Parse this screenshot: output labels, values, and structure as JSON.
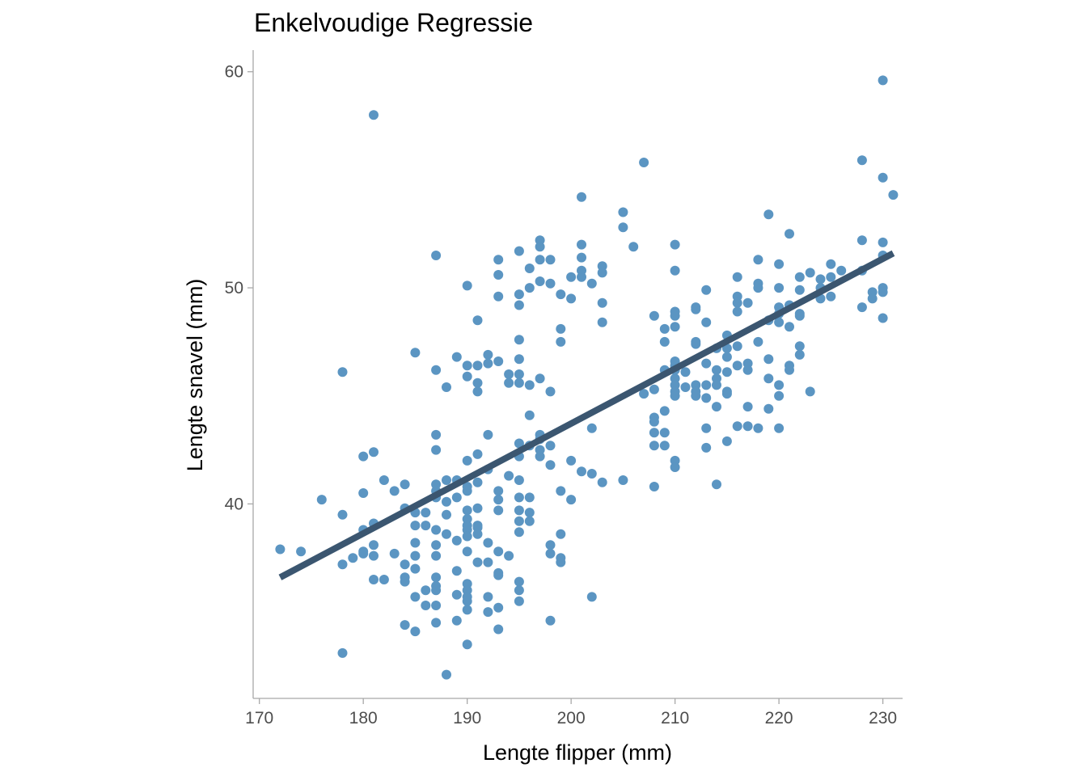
{
  "chart_data": {
    "type": "scatter",
    "title": "Enkelvoudige Regressie",
    "xlabel": "Lengte flipper (mm)",
    "ylabel": "Lengte snavel (mm)",
    "xlim": [
      169.4,
      231.9
    ],
    "ylim": [
      31,
      61
    ],
    "xticks": [
      170,
      180,
      190,
      200,
      210,
      220,
      230
    ],
    "yticks": [
      40,
      50,
      60
    ],
    "grid": false,
    "legend": "none",
    "point_color": "#5b95c2",
    "line_color": "#3b5670",
    "regression_line": {
      "x": [
        172,
        231
      ],
      "y": [
        36.6,
        51.6
      ]
    },
    "points": [
      [
        181,
        58.0
      ],
      [
        230,
        59.6
      ],
      [
        207,
        55.8
      ],
      [
        228,
        55.9
      ],
      [
        230,
        55.1
      ],
      [
        231,
        54.3
      ],
      [
        201,
        54.2
      ],
      [
        205,
        53.5
      ],
      [
        219,
        53.4
      ],
      [
        205,
        52.8
      ],
      [
        221,
        52.5
      ],
      [
        228,
        52.2
      ],
      [
        197,
        52.2
      ],
      [
        230,
        52.1
      ],
      [
        201,
        52.0
      ],
      [
        210,
        52.0
      ],
      [
        197,
        51.9
      ],
      [
        206,
        51.9
      ],
      [
        195,
        51.7
      ],
      [
        187,
        51.5
      ],
      [
        201,
        51.4
      ],
      [
        230,
        51.5
      ],
      [
        197,
        51.3
      ],
      [
        193,
        51.3
      ],
      [
        218,
        51.3
      ],
      [
        198,
        51.3
      ],
      [
        220,
        51.1
      ],
      [
        225,
        51.1
      ],
      [
        196,
        50.9
      ],
      [
        203,
        51.0
      ],
      [
        210,
        50.8
      ],
      [
        201,
        50.8
      ],
      [
        203,
        50.7
      ],
      [
        224,
        50.4
      ],
      [
        226,
        50.8
      ],
      [
        228,
        50.8
      ],
      [
        193,
        50.6
      ],
      [
        222,
        50.5
      ],
      [
        216,
        50.5
      ],
      [
        201,
        50.5
      ],
      [
        223,
        50.7
      ],
      [
        225,
        50.5
      ],
      [
        200,
        50.5
      ],
      [
        202,
        50.2
      ],
      [
        197,
        50.3
      ],
      [
        198,
        50.2
      ],
      [
        218,
        50.2
      ],
      [
        190,
        50.1
      ],
      [
        196,
        50.0
      ],
      [
        220,
        50.0
      ],
      [
        224,
        50.0
      ],
      [
        230,
        50.0
      ],
      [
        213,
        49.9
      ],
      [
        218,
        50.0
      ],
      [
        229,
        49.8
      ],
      [
        195,
        49.7
      ],
      [
        199,
        49.7
      ],
      [
        222,
        49.9
      ],
      [
        230,
        49.8
      ],
      [
        216,
        49.6
      ],
      [
        193,
        49.6
      ],
      [
        225,
        49.6
      ],
      [
        200,
        49.5
      ],
      [
        224,
        49.5
      ],
      [
        229,
        49.5
      ],
      [
        216,
        49.3
      ],
      [
        217,
        49.3
      ],
      [
        203,
        49.3
      ],
      [
        195,
        49.2
      ],
      [
        212,
        49.1
      ],
      [
        221,
        49.2
      ],
      [
        220,
        49.1
      ],
      [
        228,
        49.1
      ],
      [
        210,
        48.9
      ],
      [
        212,
        49.0
      ],
      [
        216,
        48.9
      ],
      [
        220,
        48.8
      ],
      [
        222,
        48.8
      ],
      [
        222,
        48.7
      ],
      [
        208,
        48.7
      ],
      [
        210,
        48.7
      ],
      [
        230,
        48.6
      ],
      [
        219,
        48.5
      ],
      [
        220,
        48.4
      ],
      [
        191,
        48.5
      ],
      [
        203,
        48.4
      ],
      [
        213,
        48.4
      ],
      [
        221,
        48.2
      ],
      [
        209,
        48.1
      ],
      [
        199,
        48.1
      ],
      [
        210,
        48.2
      ],
      [
        195,
        47.6
      ],
      [
        199,
        47.5
      ],
      [
        209,
        47.5
      ],
      [
        215,
        47.8
      ],
      [
        212,
        47.5
      ],
      [
        218,
        47.5
      ],
      [
        216,
        47.3
      ],
      [
        222,
        47.3
      ],
      [
        212,
        47.4
      ],
      [
        215,
        47.2
      ],
      [
        214,
        47.2
      ],
      [
        185,
        47.0
      ],
      [
        192,
        46.9
      ],
      [
        222,
        46.9
      ],
      [
        189,
        46.8
      ],
      [
        195,
        46.7
      ],
      [
        219,
        46.7
      ],
      [
        215,
        46.8
      ],
      [
        193,
        46.6
      ],
      [
        210,
        46.6
      ],
      [
        190,
        46.4
      ],
      [
        191,
        46.4
      ],
      [
        192,
        46.5
      ],
      [
        213,
        46.5
      ],
      [
        216,
        46.4
      ],
      [
        217,
        46.5
      ],
      [
        221,
        46.4
      ],
      [
        210,
        46.4
      ],
      [
        221,
        46.2
      ],
      [
        187,
        46.2
      ],
      [
        178,
        46.1
      ],
      [
        194,
        46.0
      ],
      [
        195,
        46.0
      ],
      [
        209,
        46.2
      ],
      [
        210,
        46.2
      ],
      [
        211,
        46.1
      ],
      [
        214,
        46.2
      ],
      [
        215,
        46.1
      ],
      [
        217,
        46.2
      ],
      [
        190,
        45.9
      ],
      [
        197,
        45.8
      ],
      [
        210,
        45.8
      ],
      [
        214,
        45.8
      ],
      [
        219,
        45.8
      ],
      [
        191,
        45.6
      ],
      [
        194,
        45.6
      ],
      [
        195,
        45.6
      ],
      [
        196,
        45.5
      ],
      [
        210,
        45.5
      ],
      [
        212,
        45.5
      ],
      [
        214,
        45.5
      ],
      [
        220,
        45.5
      ],
      [
        188,
        45.4
      ],
      [
        208,
        45.3
      ],
      [
        211,
        45.4
      ],
      [
        213,
        45.5
      ],
      [
        210,
        45.2
      ],
      [
        212,
        45.2
      ],
      [
        215,
        45.2
      ],
      [
        191,
        45.2
      ],
      [
        198,
        45.2
      ],
      [
        207,
        45.1
      ],
      [
        215,
        45.1
      ],
      [
        223,
        45.2
      ],
      [
        210,
        45.0
      ],
      [
        212,
        45.0
      ],
      [
        220,
        45.0
      ],
      [
        213,
        44.9
      ],
      [
        214,
        44.5
      ],
      [
        217,
        44.5
      ],
      [
        219,
        44.4
      ],
      [
        209,
        44.3
      ],
      [
        196,
        44.1
      ],
      [
        208,
        44.0
      ],
      [
        208,
        43.8
      ],
      [
        216,
        43.6
      ],
      [
        217,
        43.6
      ],
      [
        218,
        43.5
      ],
      [
        220,
        43.5
      ],
      [
        202,
        43.5
      ],
      [
        213,
        43.5
      ],
      [
        208,
        43.3
      ],
      [
        209,
        43.3
      ],
      [
        197,
        43.2
      ],
      [
        187,
        43.2
      ],
      [
        192,
        43.2
      ],
      [
        197,
        43.0
      ],
      [
        215,
        42.9
      ],
      [
        195,
        42.8
      ],
      [
        196,
        42.7
      ],
      [
        198,
        42.7
      ],
      [
        208,
        42.7
      ],
      [
        209,
        42.7
      ],
      [
        213,
        42.6
      ],
      [
        187,
        42.5
      ],
      [
        197,
        42.5
      ],
      [
        181,
        42.4
      ],
      [
        195,
        42.2
      ],
      [
        180,
        42.2
      ],
      [
        191,
        42.3
      ],
      [
        197,
        42.2
      ],
      [
        200,
        42.0
      ],
      [
        210,
        42.0
      ],
      [
        190,
        42.0
      ],
      [
        198,
        41.8
      ],
      [
        210,
        41.7
      ],
      [
        192,
        41.6
      ],
      [
        201,
        41.5
      ],
      [
        202,
        41.4
      ],
      [
        194,
        41.3
      ],
      [
        195,
        41.1
      ],
      [
        182,
        41.1
      ],
      [
        188,
        41.1
      ],
      [
        189,
        41.1
      ],
      [
        205,
        41.1
      ],
      [
        214,
        40.9
      ],
      [
        203,
        41.0
      ],
      [
        191,
        41.0
      ],
      [
        184,
        40.9
      ],
      [
        187,
        40.9
      ],
      [
        190,
        40.8
      ],
      [
        208,
        40.8
      ],
      [
        187,
        40.6
      ],
      [
        193,
        40.6
      ],
      [
        199,
        40.6
      ],
      [
        183,
        40.6
      ],
      [
        190,
        40.6
      ],
      [
        180,
        40.5
      ],
      [
        187,
        40.3
      ],
      [
        189,
        40.3
      ],
      [
        195,
        40.3
      ],
      [
        196,
        40.3
      ],
      [
        176,
        40.2
      ],
      [
        193,
        40.2
      ],
      [
        200,
        40.2
      ],
      [
        188,
        40.1
      ],
      [
        184,
        39.8
      ],
      [
        191,
        39.8
      ],
      [
        185,
        39.6
      ],
      [
        186,
        39.6
      ],
      [
        190,
        39.7
      ],
      [
        193,
        39.7
      ],
      [
        195,
        39.7
      ],
      [
        196,
        39.6
      ],
      [
        178,
        39.5
      ],
      [
        188,
        39.5
      ],
      [
        190,
        39.3
      ],
      [
        196,
        39.2
      ],
      [
        181,
        39.1
      ],
      [
        186,
        39.0
      ],
      [
        191,
        39.0
      ],
      [
        195,
        39.2
      ],
      [
        185,
        39.0
      ],
      [
        190,
        39.0
      ],
      [
        191,
        38.9
      ],
      [
        180,
        38.8
      ],
      [
        187,
        38.8
      ],
      [
        190,
        38.8
      ],
      [
        195,
        38.7
      ],
      [
        199,
        38.6
      ],
      [
        188,
        38.6
      ],
      [
        191,
        38.6
      ],
      [
        190,
        38.5
      ],
      [
        189,
        38.3
      ],
      [
        192,
        38.2
      ],
      [
        185,
        38.2
      ],
      [
        187,
        38.1
      ],
      [
        181,
        38.1
      ],
      [
        198,
        38.1
      ],
      [
        174,
        37.8
      ],
      [
        180,
        37.8
      ],
      [
        172,
        37.9
      ],
      [
        180,
        37.7
      ],
      [
        190,
        37.8
      ],
      [
        193,
        37.8
      ],
      [
        198,
        37.7
      ],
      [
        194,
        37.6
      ],
      [
        179,
        37.5
      ],
      [
        187,
        37.6
      ],
      [
        181,
        37.6
      ],
      [
        185,
        37.6
      ],
      [
        183,
        37.7
      ],
      [
        199,
        37.5
      ],
      [
        178,
        37.2
      ],
      [
        184,
        37.2
      ],
      [
        191,
        37.3
      ],
      [
        192,
        37.3
      ],
      [
        199,
        37.3
      ],
      [
        185,
        37.0
      ],
      [
        189,
        36.9
      ],
      [
        193,
        36.8
      ],
      [
        193,
        36.7
      ],
      [
        184,
        36.6
      ],
      [
        181,
        36.5
      ],
      [
        182,
        36.5
      ],
      [
        187,
        36.6
      ],
      [
        195,
        36.4
      ],
      [
        190,
        36.3
      ],
      [
        184,
        36.4
      ],
      [
        186,
        36.0
      ],
      [
        187,
        36.2
      ],
      [
        187,
        36.0
      ],
      [
        190,
        36.0
      ],
      [
        195,
        36.0
      ],
      [
        185,
        35.7
      ],
      [
        189,
        35.8
      ],
      [
        190,
        35.7
      ],
      [
        192,
        35.7
      ],
      [
        195,
        35.5
      ],
      [
        202,
        35.7
      ],
      [
        190,
        35.5
      ],
      [
        186,
        35.3
      ],
      [
        187,
        35.3
      ],
      [
        193,
        35.2
      ],
      [
        190,
        35.1
      ],
      [
        192,
        35.0
      ],
      [
        189,
        34.6
      ],
      [
        198,
        34.6
      ],
      [
        187,
        34.5
      ],
      [
        184,
        34.4
      ],
      [
        185,
        34.1
      ],
      [
        193,
        34.2
      ],
      [
        190,
        33.5
      ],
      [
        178,
        33.1
      ],
      [
        188,
        32.1
      ]
    ]
  }
}
